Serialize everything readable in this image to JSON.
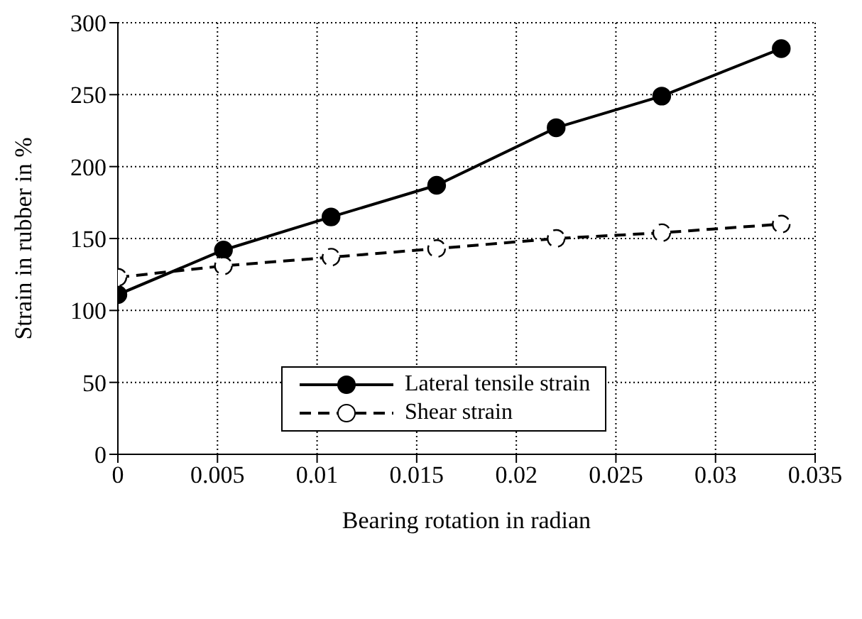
{
  "chart_data": {
    "type": "line",
    "xlabel": "Bearing rotation in radian",
    "ylabel": "Strain in rubber in %",
    "x": [
      0,
      0.0053,
      0.0107,
      0.016,
      0.022,
      0.0273,
      0.0333
    ],
    "series": [
      {
        "name": "Lateral tensile strain",
        "color": "#000000",
        "values": [
          111,
          142,
          165,
          187,
          227,
          249,
          282
        ],
        "line_style": "solid"
      },
      {
        "name": "Shear strain",
        "color": "#000000",
        "values": [
          123,
          131,
          137,
          143,
          150,
          154,
          160
        ],
        "line_style": "dashed"
      }
    ],
    "xlim": [
      0,
      0.035
    ],
    "xticks": [
      0,
      0.005,
      0.01,
      0.015,
      0.02,
      0.025,
      0.03,
      0.035
    ],
    "ylim": [
      0,
      300
    ],
    "yticks": [
      0,
      50,
      100,
      150,
      200,
      250,
      300
    ],
    "grid": true,
    "legend": "bottom",
    "marker": "circle"
  }
}
